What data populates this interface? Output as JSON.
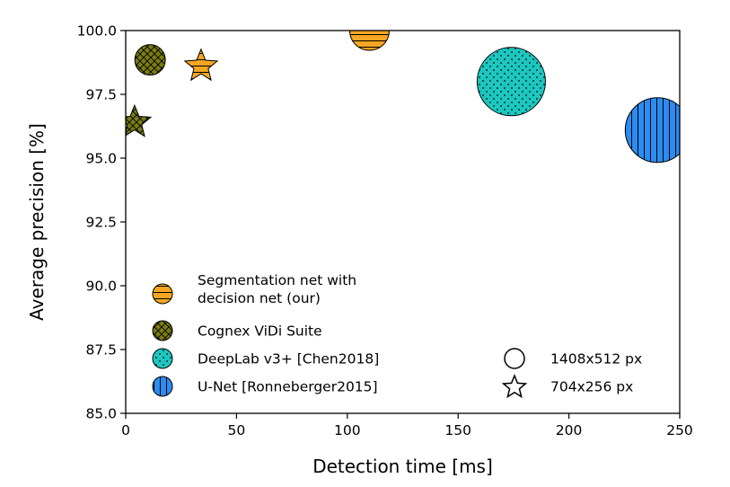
{
  "chart_data": {
    "type": "scatter",
    "title": "",
    "xlabel": "Detection time [ms]",
    "ylabel": "Average precision [%]",
    "xlim": [
      0,
      250
    ],
    "ylim": [
      85.0,
      100.0
    ],
    "xticks": [
      "0",
      "50",
      "100",
      "150",
      "200",
      "250"
    ],
    "yticks": [
      "85.0",
      "87.5",
      "90.0",
      "92.5",
      "95.0",
      "97.5",
      "100.0"
    ],
    "grid": false,
    "legend_position": "lower-left",
    "series": [
      {
        "name": "Segmentation net with decision net (our)",
        "label_lines": [
          "Segmentation net with",
          "decision net (our)"
        ],
        "color": "#f5a623",
        "hatch": "horizontal",
        "points": [
          {
            "x": 110,
            "y": 100.0,
            "resolution": "1408x512 px"
          },
          {
            "x": 34,
            "y": 98.6,
            "resolution": "704x256 px"
          }
        ]
      },
      {
        "name": "Cognex ViDi Suite",
        "label_lines": [
          "Cognex ViDi Suite"
        ],
        "color": "#7a7d0f",
        "hatch": "crosshatch",
        "points": [
          {
            "x": 11,
            "y": 98.85,
            "resolution": "1408x512 px"
          },
          {
            "x": 4,
            "y": 96.4,
            "resolution": "704x256 px"
          }
        ]
      },
      {
        "name": "DeepLab v3+ [Chen2018]",
        "label_lines": [
          "DeepLab v3+ [Chen2018]"
        ],
        "color": "#1cc7c0",
        "hatch": "dots",
        "points": [
          {
            "x": 174,
            "y": 98.0,
            "resolution": "1408x512 px"
          }
        ]
      },
      {
        "name": "U-Net [Ronneberger2015]",
        "label_lines": [
          "U-Net [Ronneberger2015]"
        ],
        "color": "#2b8cf2",
        "hatch": "vertical",
        "points": [
          {
            "x": 240,
            "y": 96.1,
            "resolution": "1408x512 px"
          }
        ]
      }
    ],
    "size_legend": [
      {
        "label": "1408x512 px",
        "marker": "circle"
      },
      {
        "label": "704x256 px",
        "marker": "star"
      }
    ]
  }
}
